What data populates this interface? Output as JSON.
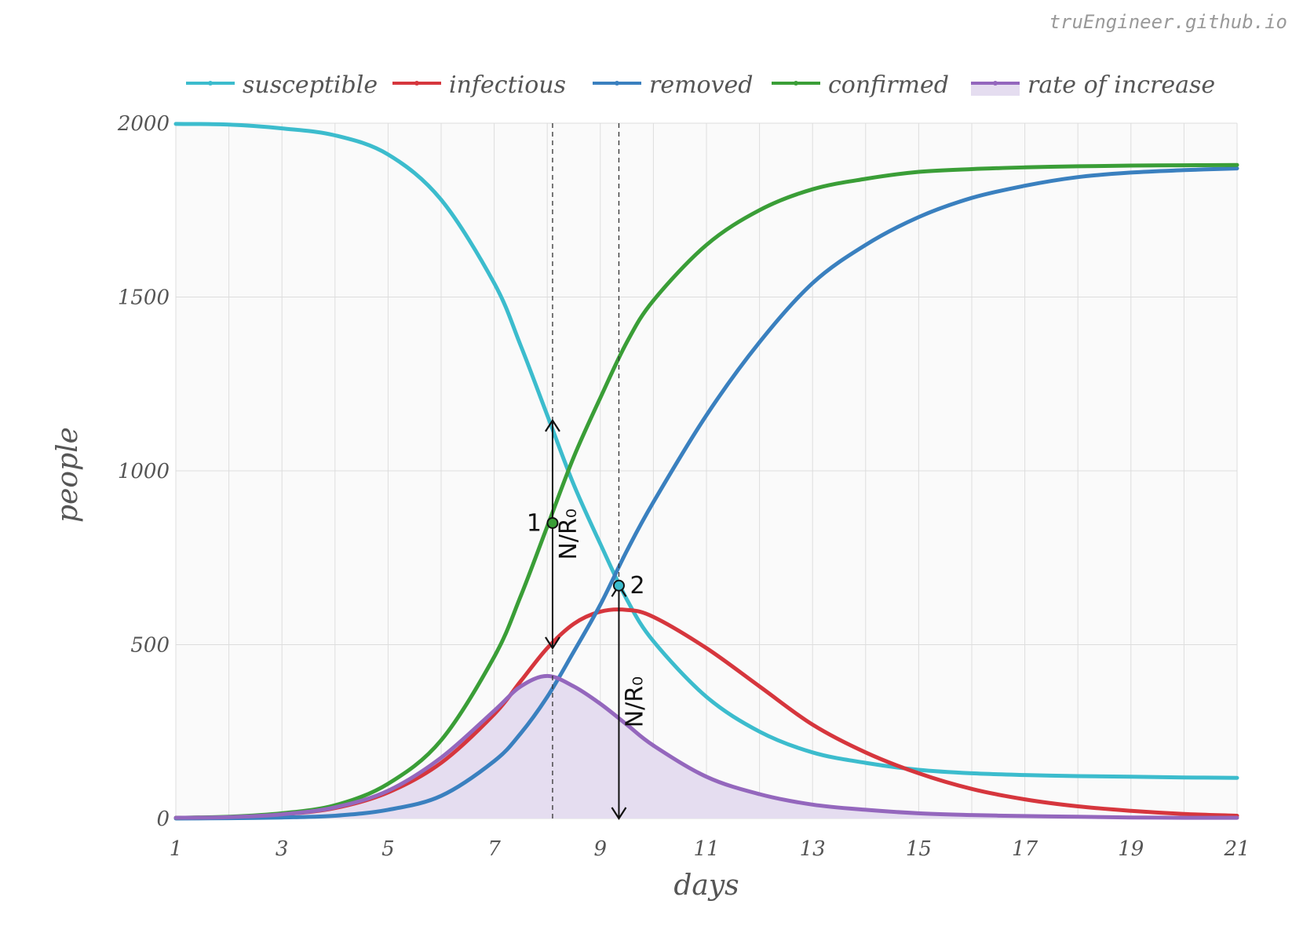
{
  "watermark": "truEngineer.github.io",
  "chart_data": {
    "type": "line",
    "xlabel": "days",
    "ylabel": "people",
    "xlim": [
      1,
      21
    ],
    "ylim": [
      0,
      2000
    ],
    "xticks": [
      "1",
      "3",
      "5",
      "7",
      "9",
      "11",
      "13",
      "15",
      "17",
      "19",
      "21"
    ],
    "yticks": [
      "0",
      "500",
      "1000",
      "1500",
      "2000"
    ],
    "grid": true,
    "legend_position": "top",
    "x": [
      1,
      2,
      3,
      4,
      5,
      6,
      7,
      7.5,
      8,
      8.5,
      9,
      9.5,
      10,
      11,
      12,
      13,
      14,
      15,
      16,
      17,
      18,
      19,
      20,
      21
    ],
    "series": [
      {
        "name": "susceptible",
        "color": "#3cbccd",
        "values": [
          1998,
          1996,
          1985,
          1965,
          1910,
          1780,
          1540,
          1360,
          1160,
          960,
          790,
          630,
          510,
          350,
          250,
          190,
          160,
          140,
          130,
          125,
          122,
          120,
          118,
          117
        ]
      },
      {
        "name": "infectious",
        "color": "#d6363d",
        "values": [
          2,
          4,
          12,
          30,
          75,
          160,
          300,
          395,
          490,
          560,
          595,
          600,
          580,
          490,
          380,
          270,
          190,
          130,
          85,
          55,
          35,
          22,
          13,
          8
        ]
      },
      {
        "name": "removed",
        "color": "#3a80bf",
        "values": [
          0,
          1,
          3,
          8,
          25,
          65,
          165,
          245,
          350,
          480,
          615,
          770,
          910,
          1160,
          1370,
          1540,
          1650,
          1730,
          1785,
          1820,
          1845,
          1858,
          1865,
          1870
        ]
      },
      {
        "name": "confirmed",
        "color": "#3a9e37",
        "values": [
          2,
          5,
          15,
          38,
          100,
          225,
          465,
          640,
          840,
          1040,
          1210,
          1370,
          1490,
          1650,
          1750,
          1810,
          1840,
          1860,
          1868,
          1873,
          1876,
          1878,
          1879,
          1880
        ]
      },
      {
        "name": "rate of increase",
        "color": "#9467bd",
        "fill": "#e5ddf0",
        "values": [
          2,
          4,
          12,
          32,
          80,
          175,
          310,
          380,
          410,
          380,
          330,
          270,
          210,
          120,
          70,
          40,
          25,
          15,
          10,
          7,
          5,
          3,
          2,
          2
        ]
      }
    ],
    "annotations": {
      "vlines": [
        8.1,
        9.35
      ],
      "point1": {
        "label": "1",
        "x": 8.1,
        "y": 850
      },
      "point2": {
        "label": "2",
        "x": 9.35,
        "y": 670
      },
      "arrow1": {
        "label": "N/R₀",
        "x": 8.1,
        "from": 490,
        "to": 1145
      },
      "arrow2": {
        "label": "N/R₀",
        "x": 9.35,
        "from": 0,
        "to": 670
      }
    }
  }
}
